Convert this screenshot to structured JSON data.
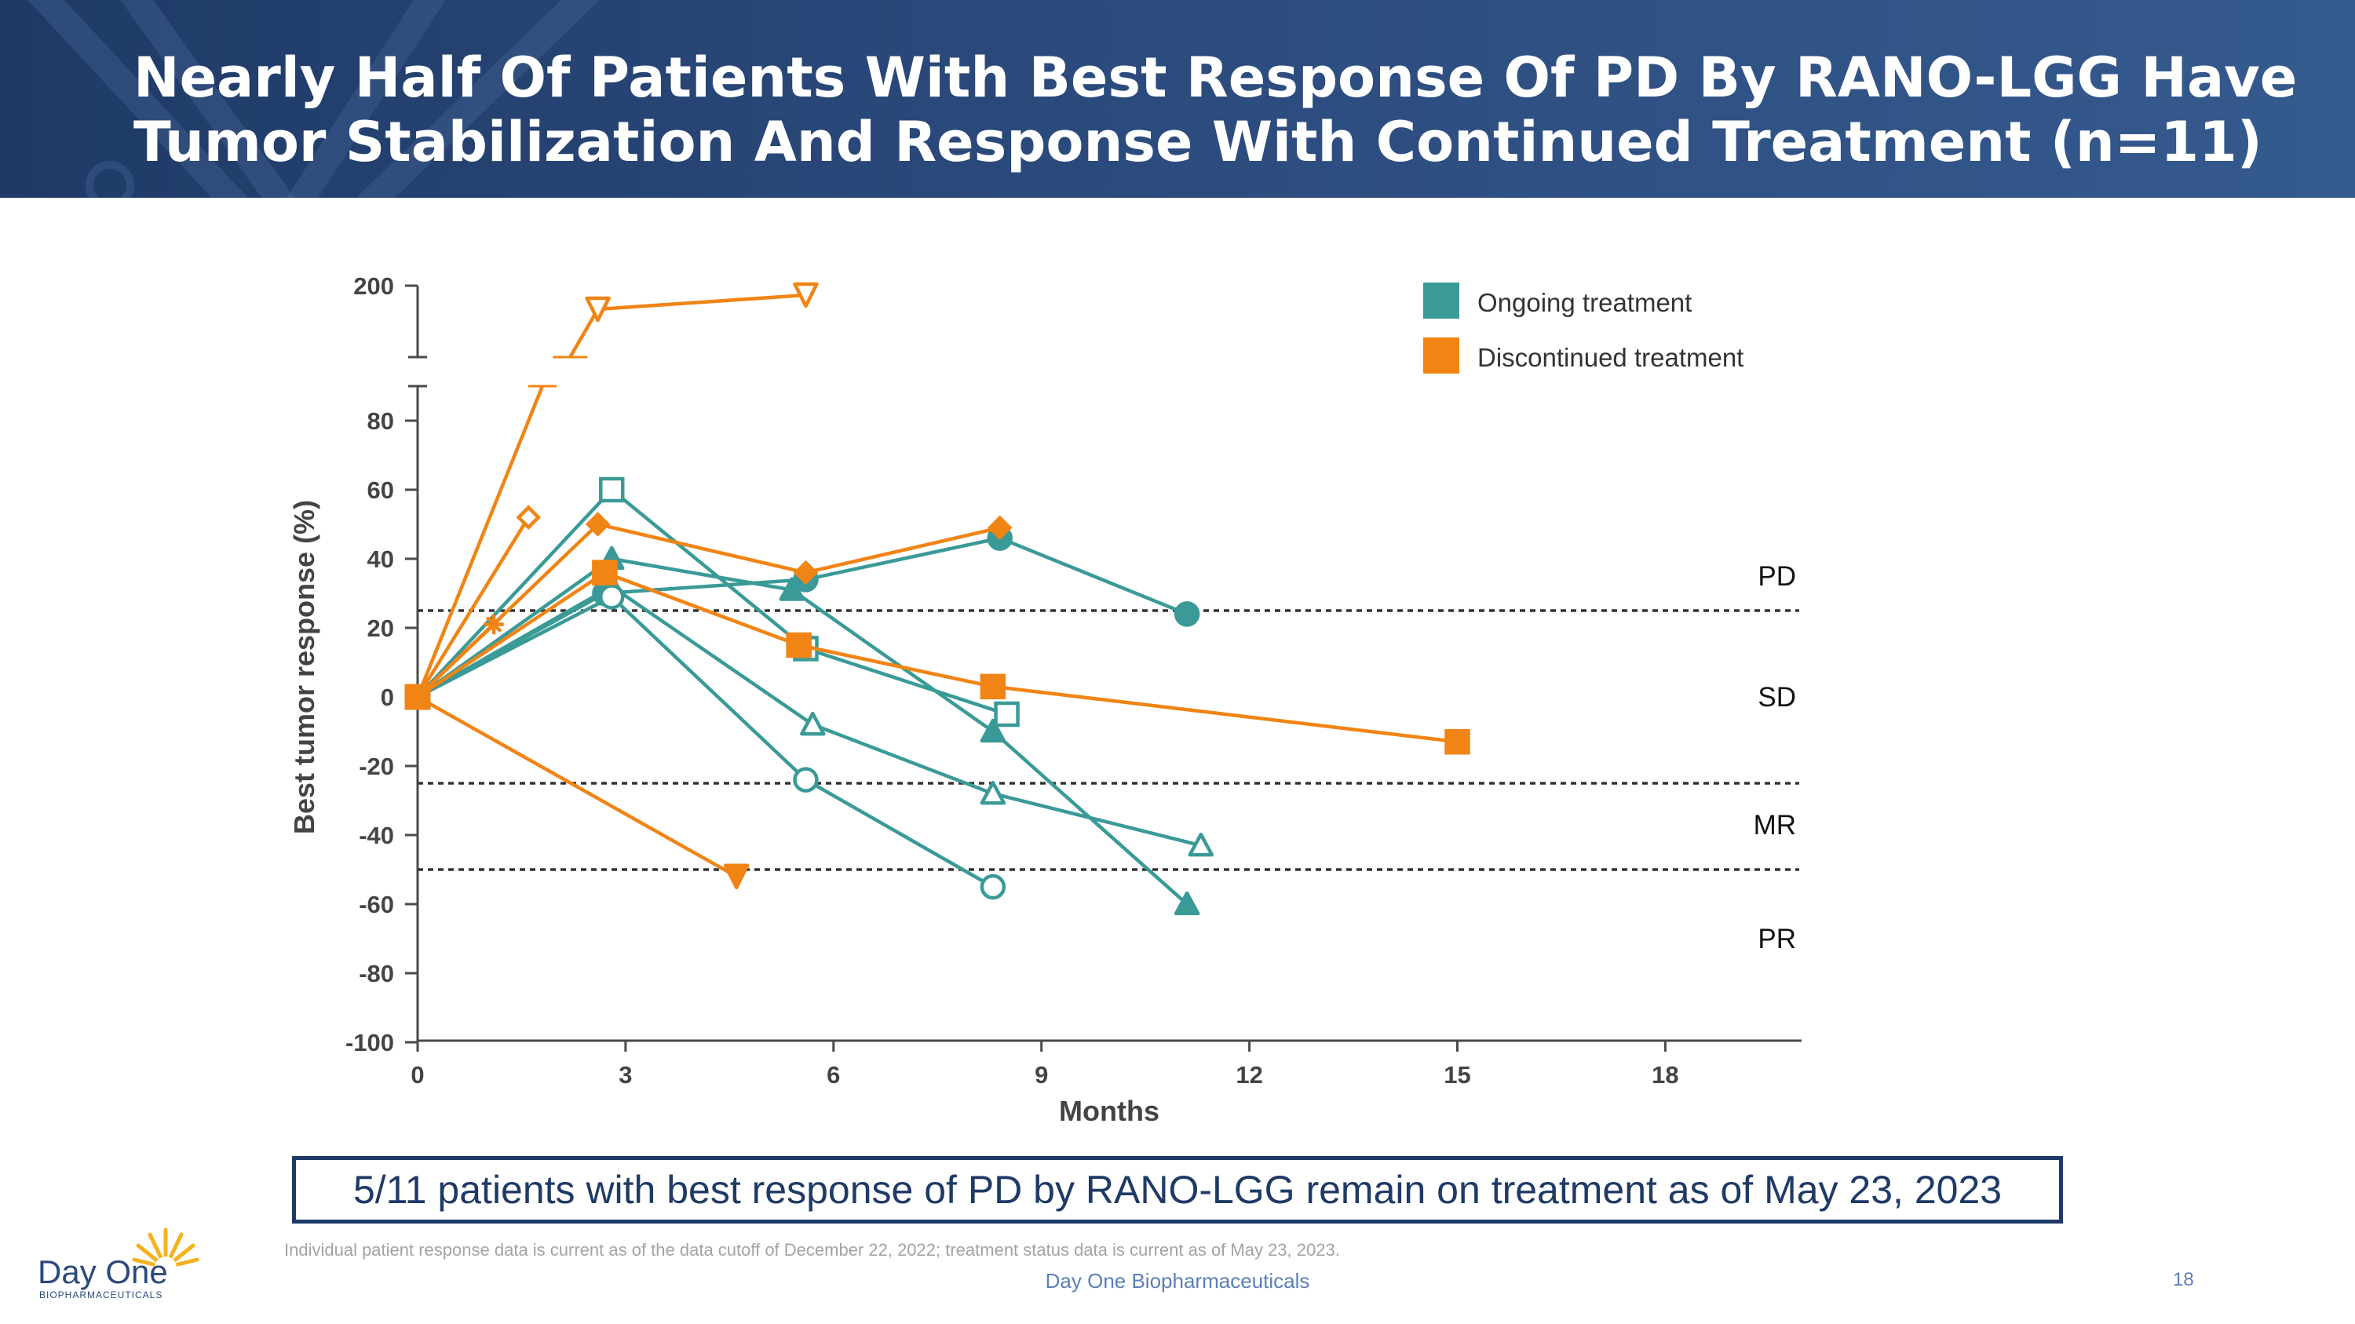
{
  "header": {
    "title_line1": "Nearly Half Of Patients With Best Response Of PD By RANO-LGG Have",
    "title_line2": "Tumor Stabilization And Response With Continued Treatment (n=11)"
  },
  "colors": {
    "ongoing": "#3a9a97",
    "discontinued": "#f08414",
    "header_bg": "#2b4a7c",
    "accent": "#1f3a66"
  },
  "chart_data": {
    "type": "line",
    "xlabel": "Months",
    "ylabel": "Best tumor response (%)",
    "x_ticks": [
      "0",
      "3",
      "6",
      "9",
      "12",
      "15",
      "18"
    ],
    "y_ticks": [
      "200",
      "80",
      "60",
      "40",
      "20",
      "0",
      "-20",
      "-40",
      "-60",
      "-80",
      "-100"
    ],
    "xlim": [
      0,
      20
    ],
    "ylim": [
      -100,
      200
    ],
    "axis_break": [
      90,
      170
    ],
    "legend": [
      {
        "label": "Ongoing treatment",
        "color": "#3a9a97"
      },
      {
        "label": "Discontinued treatment",
        "color": "#f08414"
      }
    ],
    "legend_position": "top-right",
    "reference_lines": [
      {
        "y": 25,
        "style": "dotted"
      },
      {
        "y": -25,
        "style": "dotted"
      },
      {
        "y": -50,
        "style": "dotted"
      }
    ],
    "region_labels": [
      {
        "text": "PD",
        "y": 35
      },
      {
        "text": "SD",
        "y": 0
      },
      {
        "text": "MR",
        "y": -37
      },
      {
        "text": "PR",
        "y": -70
      }
    ],
    "series": [
      {
        "status": "ongoing",
        "marker": "circle-filled",
        "points": [
          [
            0,
            0
          ],
          [
            2.7,
            30
          ],
          [
            5.6,
            34
          ],
          [
            8.4,
            46
          ],
          [
            11.1,
            24
          ]
        ]
      },
      {
        "status": "ongoing",
        "marker": "square-open",
        "points": [
          [
            0,
            0
          ],
          [
            2.8,
            60
          ],
          [
            5.6,
            14
          ],
          [
            8.5,
            -5
          ]
        ]
      },
      {
        "status": "ongoing",
        "marker": "triangle-filled",
        "points": [
          [
            0,
            0
          ],
          [
            2.8,
            40
          ],
          [
            5.4,
            31
          ],
          [
            8.3,
            -10
          ],
          [
            11.1,
            -60
          ]
        ]
      },
      {
        "status": "ongoing",
        "marker": "triangle-open",
        "points": [
          [
            0,
            0
          ],
          [
            2.8,
            32
          ],
          [
            5.7,
            -8
          ],
          [
            8.3,
            -28
          ],
          [
            11.3,
            -43
          ]
        ]
      },
      {
        "status": "ongoing",
        "marker": "circle-open",
        "points": [
          [
            0,
            0
          ],
          [
            2.8,
            29
          ],
          [
            5.6,
            -24
          ],
          [
            8.3,
            -55
          ]
        ]
      },
      {
        "status": "discontinued",
        "marker": "triangle-down-open",
        "points": [
          [
            0,
            0
          ],
          [
            2.6,
            190
          ],
          [
            5.6,
            196
          ]
        ]
      },
      {
        "status": "discontinued",
        "marker": "diamond-open",
        "points": [
          [
            0,
            0
          ],
          [
            1.6,
            52
          ]
        ]
      },
      {
        "status": "discontinued",
        "marker": "star",
        "points": [
          [
            0,
            0
          ],
          [
            1.1,
            21
          ]
        ]
      },
      {
        "status": "discontinued",
        "marker": "diamond-filled",
        "points": [
          [
            0,
            0
          ],
          [
            2.6,
            50
          ],
          [
            5.6,
            36
          ],
          [
            8.4,
            49
          ]
        ]
      },
      {
        "status": "discontinued",
        "marker": "square-filled",
        "points": [
          [
            0,
            0
          ],
          [
            2.7,
            36
          ],
          [
            5.5,
            15
          ],
          [
            8.3,
            3
          ],
          [
            15,
            -13
          ]
        ]
      },
      {
        "status": "discontinued",
        "marker": "triangle-down-filled",
        "points": [
          [
            0,
            0
          ],
          [
            4.6,
            -52
          ]
        ]
      }
    ]
  },
  "callout_text": "5/11 patients with best response of PD by RANO-LGG remain on treatment as of May 23, 2023",
  "footnote": "Individual patient response data is current as of the data cutoff of December 22, 2022; treatment status data is current as of May 23, 2023.",
  "footer": {
    "company": "Day One Biopharmaceuticals",
    "page_number": "18"
  },
  "logo": {
    "name": "Day One",
    "subtitle": "BIOPHARMACEUTICALS"
  }
}
